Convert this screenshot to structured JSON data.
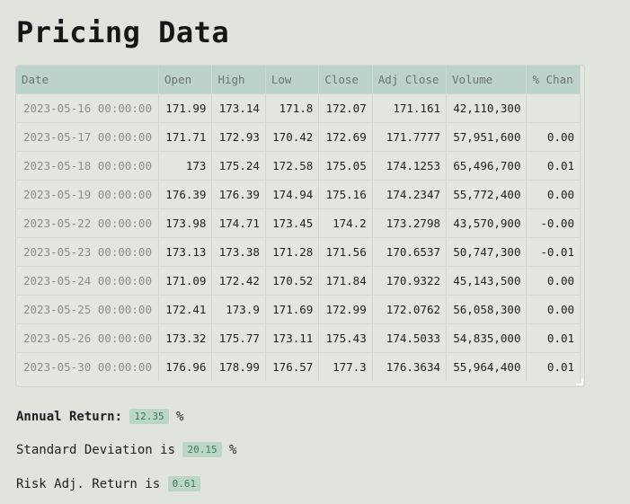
{
  "page": {
    "title": "Pricing Data"
  },
  "table": {
    "columns": [
      "Date",
      "Open",
      "High",
      "Low",
      "Close",
      "Adj Close",
      "Volume",
      "% Chan"
    ],
    "rows": [
      [
        "2023-05-16 00:00:00",
        "171.99",
        "173.14",
        "171.8",
        "172.07",
        "171.161",
        "42,110,300",
        ""
      ],
      [
        "2023-05-17 00:00:00",
        "171.71",
        "172.93",
        "170.42",
        "172.69",
        "171.7777",
        "57,951,600",
        "0.00"
      ],
      [
        "2023-05-18 00:00:00",
        "173",
        "175.24",
        "172.58",
        "175.05",
        "174.1253",
        "65,496,700",
        "0.01"
      ],
      [
        "2023-05-19 00:00:00",
        "176.39",
        "176.39",
        "174.94",
        "175.16",
        "174.2347",
        "55,772,400",
        "0.00"
      ],
      [
        "2023-05-22 00:00:00",
        "173.98",
        "174.71",
        "173.45",
        "174.2",
        "173.2798",
        "43,570,900",
        "-0.00"
      ],
      [
        "2023-05-23 00:00:00",
        "173.13",
        "173.38",
        "171.28",
        "171.56",
        "170.6537",
        "50,747,300",
        "-0.01"
      ],
      [
        "2023-05-24 00:00:00",
        "171.09",
        "172.42",
        "170.52",
        "171.84",
        "170.9322",
        "45,143,500",
        "0.00"
      ],
      [
        "2023-05-25 00:00:00",
        "172.41",
        "173.9",
        "171.69",
        "172.99",
        "172.0762",
        "56,058,300",
        "0.00"
      ],
      [
        "2023-05-26 00:00:00",
        "173.32",
        "175.77",
        "173.11",
        "175.43",
        "174.5033",
        "54,835,000",
        "0.01"
      ],
      [
        "2023-05-30 00:00:00",
        "176.96",
        "178.99",
        "176.57",
        "177.3",
        "176.3634",
        "55,964,400",
        "0.01"
      ]
    ]
  },
  "stats": {
    "annual_return_label": "Annual Return:",
    "annual_return_value": "12.35",
    "annual_return_unit": "%",
    "std_dev_label": "Standard Deviation is",
    "std_dev_value": "20.15",
    "std_dev_unit": "%",
    "risk_adj_label": "Risk Adj. Return is",
    "risk_adj_value": "0.61"
  },
  "colors": {
    "background": "#e1e3dd",
    "header_bg": "#bcd3ca",
    "badge_bg": "#bcd6c6",
    "badge_text": "#3d7a5a"
  }
}
